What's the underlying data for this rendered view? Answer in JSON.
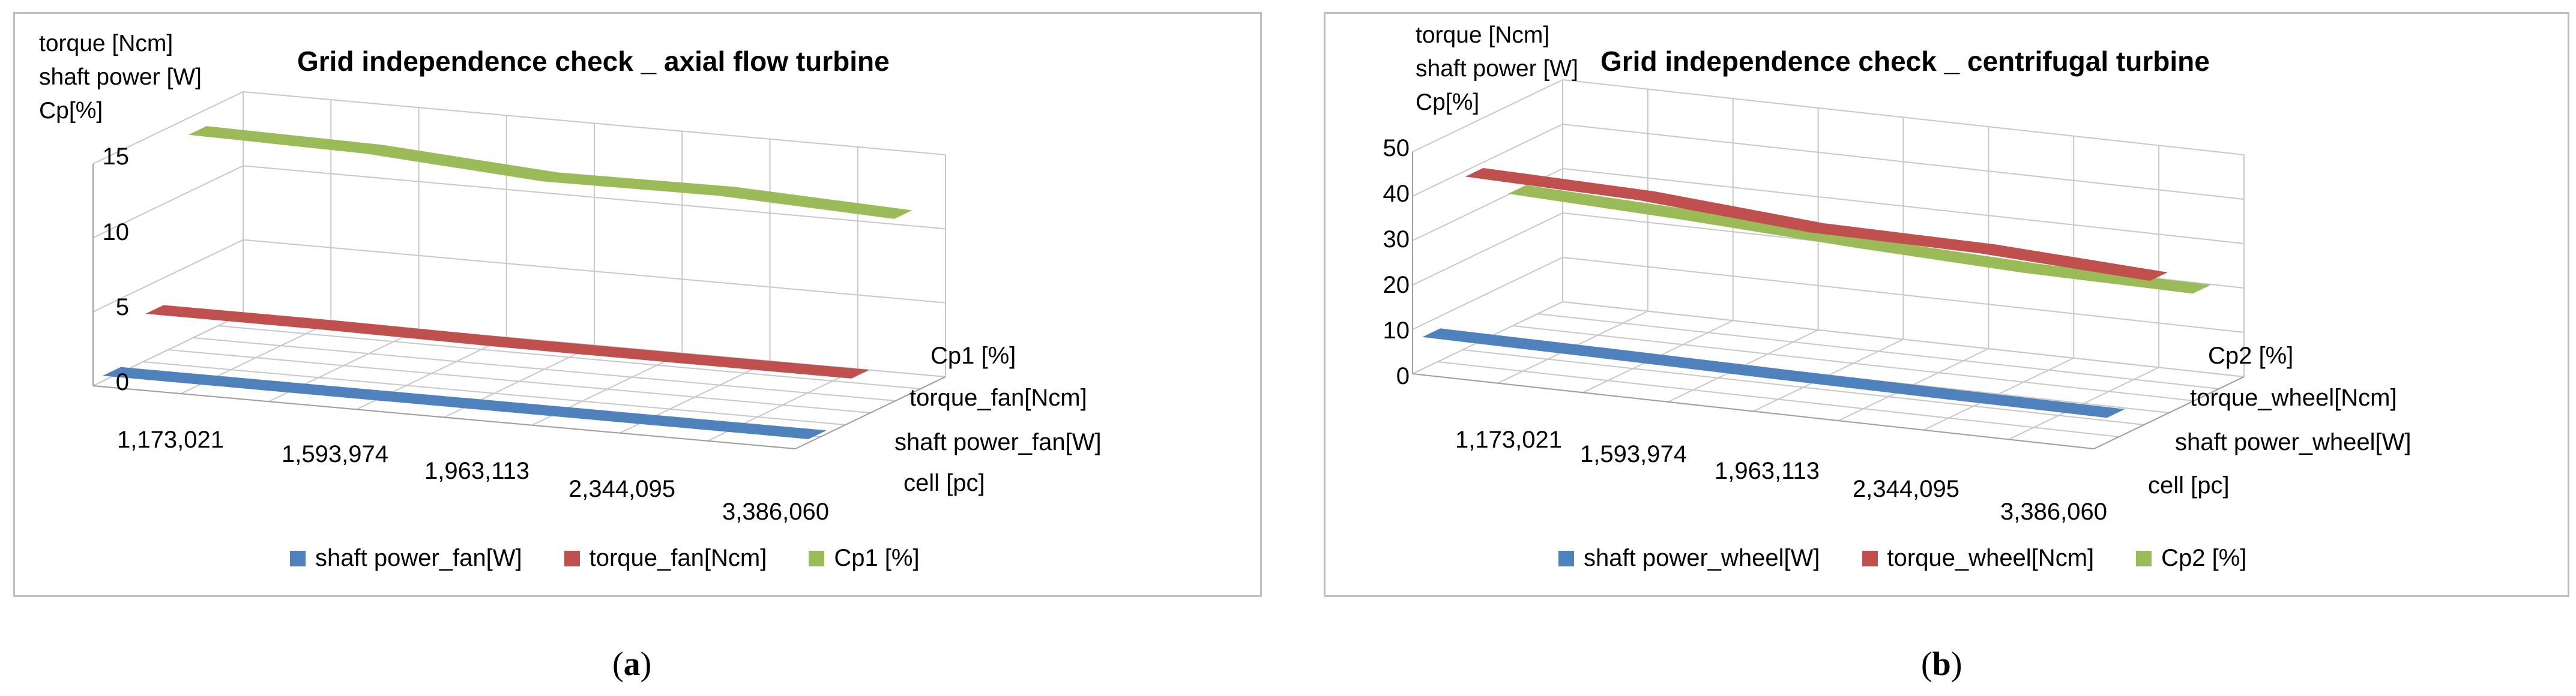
{
  "chart_data": [
    {
      "type": "area",
      "panel": "a",
      "title": "Grid independence check _ axial flow turbine",
      "yaxis_title": [
        "torque [Ncm]",
        "shaft power [W]",
        "Cp[%]"
      ],
      "ylim": [
        0,
        15
      ],
      "yticks": [
        "15",
        "10",
        "5",
        "0"
      ],
      "categories": [
        "1,173,021",
        "1,593,974",
        "1,963,113",
        "2,344,095",
        "3,386,060"
      ],
      "depth_axis_labels": [
        "Cp1 [%]",
        "torque_fan[Ncm]",
        "shaft power_fan[W]",
        "cell [pc]"
      ],
      "series": [
        {
          "name": "shaft power_fan[W]",
          "color": "#4F81BD",
          "values": [
            0.3,
            0.3,
            0.3,
            0.3,
            0.3
          ]
        },
        {
          "name": "torque_fan[Ncm]",
          "color": "#C0504D",
          "values": [
            3.1,
            3.1,
            3.0,
            3.0,
            3.0
          ]
        },
        {
          "name": "Cp1 [%]",
          "color": "#9BBB59",
          "values": [
            13.8,
            13.6,
            12.8,
            12.9,
            12.4
          ]
        }
      ],
      "legend_position": "bottom",
      "grid": true
    },
    {
      "type": "area",
      "panel": "b",
      "title": "Grid independence check _ centrifugal turbine",
      "yaxis_title": [
        "torque [Ncm]",
        "shaft power [W]",
        "Cp[%]"
      ],
      "ylim": [
        0,
        50
      ],
      "yticks": [
        "50",
        "40",
        "30",
        "20",
        "10",
        "0"
      ],
      "categories": [
        "1,173,021",
        "1,593,974",
        "1,963,113",
        "2,344,095",
        "3,386,060"
      ],
      "depth_axis_labels": [
        "Cp2 [%]",
        "torque_wheel[Ncm]",
        "shaft power_wheel[W]",
        "cell [pc]"
      ],
      "series": [
        {
          "name": "shaft power_wheel[W]",
          "color": "#4F81BD",
          "values": [
            7.0,
            6.7,
            6.3,
            6.0,
            5.8
          ]
        },
        {
          "name": "torque_wheel[Ncm]",
          "color": "#C0504D",
          "values": [
            38.5,
            37.5,
            34.5,
            34.0,
            32.0
          ]
        },
        {
          "name": "Cp2 [%]",
          "color": "#9BBB59",
          "values": [
            30.0,
            28.5,
            26.5,
            25.0,
            24.5
          ]
        }
      ],
      "legend_position": "bottom",
      "grid": true
    }
  ],
  "captions": [
    {
      "label": "a"
    },
    {
      "label": "b"
    }
  ]
}
